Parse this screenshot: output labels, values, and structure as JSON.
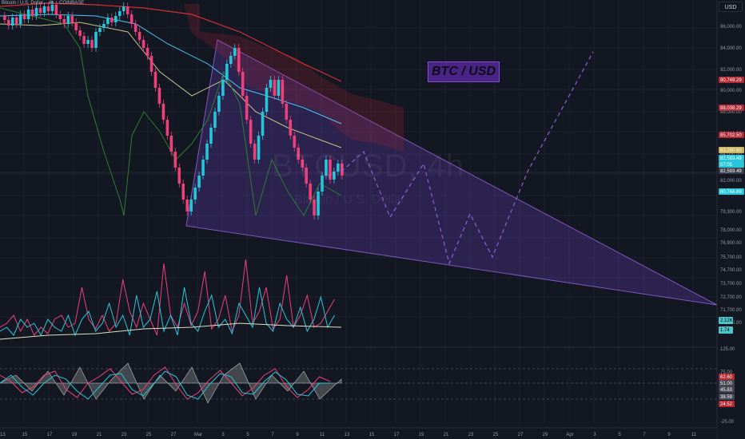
{
  "header": {
    "symbol": "Bitcoin / U.S. Dollar",
    "interval": "4h",
    "exchange": "COINBASE"
  },
  "currency_button": "USD",
  "drawing_label": "BTC / USD",
  "watermark": {
    "symbol": "BTCUSD, 4h",
    "description": "Bitcoin / U.S. Dollar"
  },
  "colors": {
    "background": "#131722",
    "bull": "#26c6da",
    "bear": "#ec407a",
    "wedge": "#6a3fc2",
    "label_box": "#4a2386"
  },
  "price_axis": {
    "ticks": [
      "96,000.00",
      "94,000.00",
      "92,000.00",
      "90,000.00",
      "88,000.00",
      "86,000.00",
      "84,000.00",
      "82,000.00",
      "80,000.00",
      "79,300.00",
      "78,000.00",
      "76,900.00",
      "75,700.00",
      "74,700.00",
      "73,700.00",
      "72,700.00",
      "71,700.00",
      "70,700.00"
    ],
    "badges": [
      {
        "text": "90,749.29",
        "color": "#b22833"
      },
      {
        "text": "88,038.29",
        "color": "#b22833"
      },
      {
        "text": "85,702.50",
        "color": "#b22833"
      },
      {
        "text": "83,250.60",
        "color": "#c9b458"
      },
      {
        "text": "82,593.49",
        "color": "#26c6da"
      },
      {
        "text": "07:05",
        "color": "#26c6da"
      },
      {
        "text": "82,593.49",
        "color": "#3a3e4a"
      },
      {
        "text": "80,768.69",
        "color": "#26c6da"
      }
    ]
  },
  "volume_axis": {
    "badges": [
      {
        "text": "2.12K",
        "color": "#4fc3c7"
      },
      {
        "text": "1.74",
        "color": "#4fc3c7"
      }
    ]
  },
  "rsi_axis": {
    "ticks": [
      "125.00",
      "75.00",
      "-25.00"
    ],
    "badges": [
      {
        "text": "62.60",
        "color": "#b22833"
      },
      {
        "text": "51.00",
        "color": "#434651"
      },
      {
        "text": "45.83",
        "color": "#434651"
      },
      {
        "text": "38.59",
        "color": "#434651"
      },
      {
        "text": "24.52",
        "color": "#b22833"
      }
    ]
  },
  "time_axis": {
    "labels": [
      "13",
      "15",
      "17",
      "19",
      "21",
      "23",
      "25",
      "27",
      "Mar",
      "3",
      "5",
      "7",
      "9",
      "11",
      "13",
      "15",
      "17",
      "19",
      "21",
      "23",
      "25",
      "27",
      "29",
      "Apr",
      "3",
      "5",
      "7",
      "9",
      "11"
    ]
  }
}
